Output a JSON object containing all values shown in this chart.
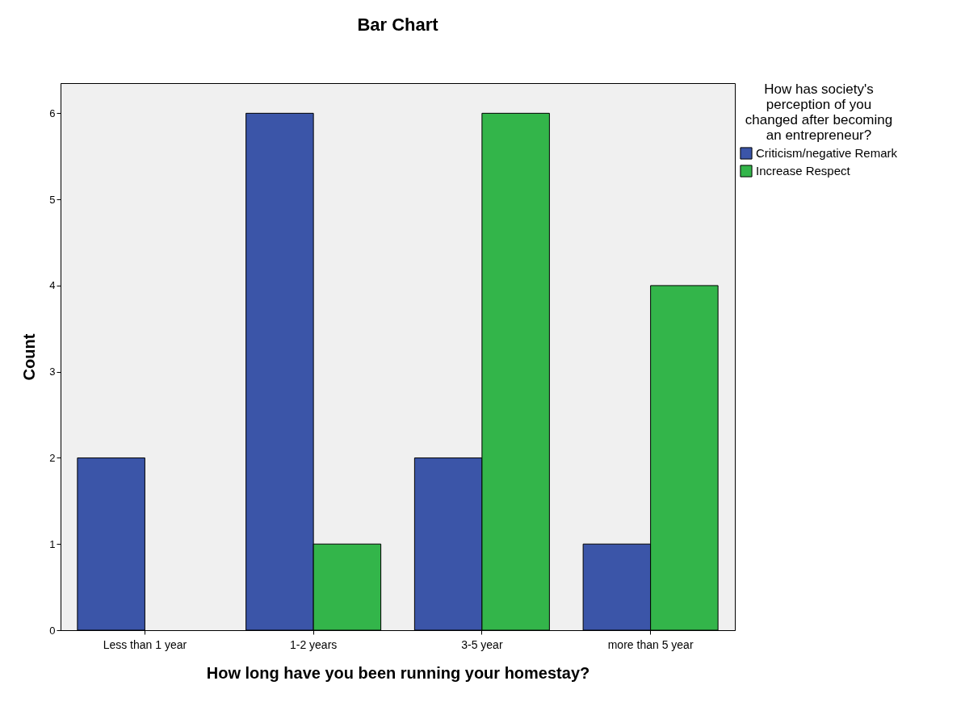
{
  "chart_data": {
    "type": "bar",
    "title": "Bar Chart",
    "xlabel": "How long have you been running your homestay?",
    "ylabel": "Count",
    "legend_title": "How has society's perception of you changed after becoming an entrepreneur?",
    "categories": [
      "Less than 1 year",
      "1-2 years",
      "3-5 year",
      "more than 5 year"
    ],
    "series": [
      {
        "name": "Criticism/negative Remark",
        "color": "#3b55a8",
        "values": [
          2,
          6,
          2,
          1
        ]
      },
      {
        "name": "Increase Respect",
        "color": "#33b54a",
        "values": [
          null,
          1,
          6,
          4
        ]
      }
    ],
    "ylim": [
      0,
      6.35
    ],
    "yticks": [
      0,
      1,
      2,
      3,
      4,
      5,
      6
    ],
    "grid": false,
    "legend": "top right"
  }
}
